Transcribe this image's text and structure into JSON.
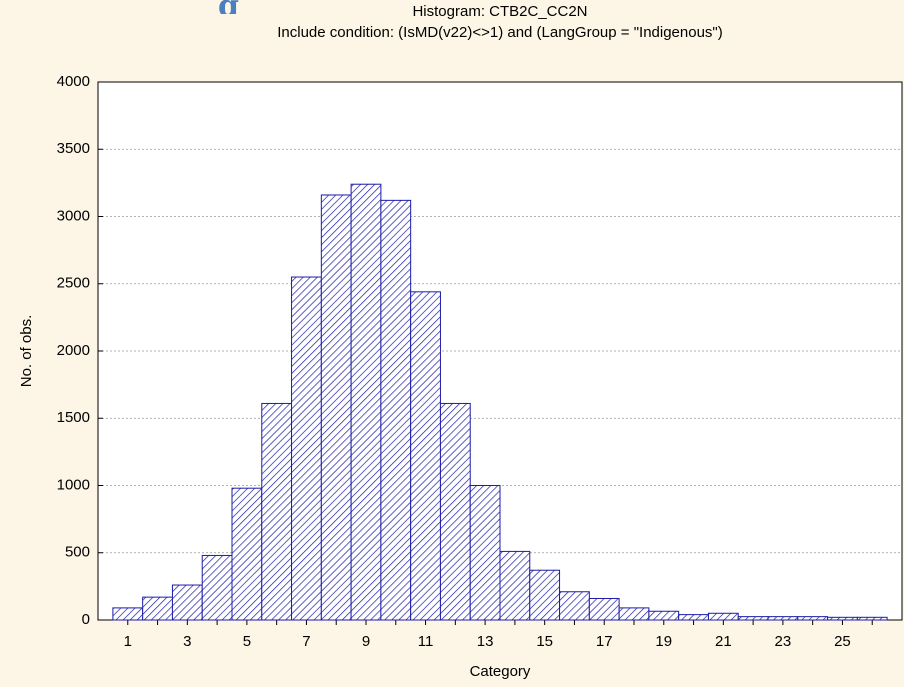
{
  "heading_fragment": "g",
  "chart_data": {
    "type": "bar",
    "title": "Histogram: CTB2C_CC2N",
    "subtitle": "Include condition: (IsMD(v22)<>1) and (LangGroup = \"Indigenous\")",
    "x_label": "Category",
    "y_label": "No. of obs.",
    "categories": [
      "1",
      null,
      "3",
      null,
      "5",
      null,
      "7",
      null,
      "9",
      null,
      "11",
      null,
      "13",
      null,
      "15",
      null,
      "17",
      null,
      "19",
      null,
      "21",
      null,
      "23",
      null,
      "25",
      null
    ],
    "values": [
      90,
      170,
      260,
      480,
      980,
      1610,
      2550,
      3160,
      3240,
      3120,
      2440,
      1610,
      1000,
      510,
      370,
      210,
      160,
      90,
      65,
      40,
      50,
      25,
      25,
      25,
      20,
      20
    ],
    "color": "#1c1ca8",
    "ylim": [
      0,
      4000
    ],
    "yticks": [
      0,
      500,
      1000,
      1500,
      2000,
      2500,
      3000,
      3500,
      4000
    ],
    "grid": true
  }
}
